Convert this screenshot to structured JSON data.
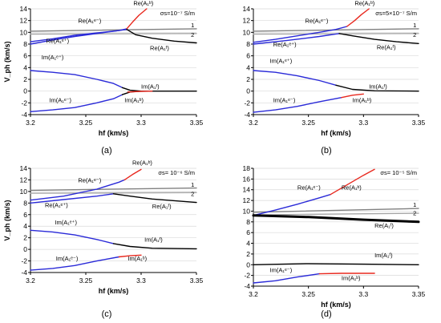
{
  "chart_data": [
    {
      "type": "line",
      "caption": "(a)",
      "xlabel": "hf (km/s)",
      "ylabel": "V_ph (km/s)",
      "xlim": [
        3.2,
        3.35
      ],
      "ylim": [
        -4,
        14
      ],
      "xticks": [
        3.2,
        3.25,
        3.3,
        3.35
      ],
      "xtick_labels": [
        "3.2",
        "3.25",
        "3.3",
        "3.35"
      ],
      "yticks": [
        -4,
        -2,
        0,
        2,
        4,
        6,
        8,
        10,
        12,
        14
      ],
      "sigma_label": "σs=10⁻⁷ S/m",
      "series": [
        {
          "color": "#808080",
          "x": [
            3.2,
            3.35
          ],
          "y": [
            10.2,
            10.6
          ]
        },
        {
          "color": "#a6a6a6",
          "x": [
            3.2,
            3.35
          ],
          "y": [
            9.7,
            9.8
          ]
        },
        {
          "color": "#2a2ad8",
          "x": [
            3.2,
            3.22,
            3.24,
            3.26,
            3.28,
            3.287
          ],
          "y": [
            8.0,
            8.7,
            9.3,
            9.8,
            10.3,
            10.6
          ]
        },
        {
          "color": "#2a2ad8",
          "x": [
            3.2,
            3.22,
            3.24,
            3.26,
            3.28,
            3.287
          ],
          "y": [
            8.4,
            8.9,
            9.5,
            9.9,
            10.3,
            10.5
          ]
        },
        {
          "color": "#e8281e",
          "x": [
            3.287,
            3.292,
            3.298,
            3.305
          ],
          "y": [
            10.6,
            11.7,
            12.9,
            14.0
          ]
        },
        {
          "color": "#000000",
          "x": [
            3.287,
            3.295,
            3.31,
            3.33,
            3.35
          ],
          "y": [
            10.5,
            9.6,
            9.0,
            8.5,
            8.2
          ]
        },
        {
          "color": "#2a2ad8",
          "x": [
            3.2,
            3.22,
            3.24,
            3.26,
            3.275,
            3.283
          ],
          "y": [
            3.5,
            3.2,
            2.8,
            2.0,
            1.3,
            0.6
          ]
        },
        {
          "color": "#2a2ad8",
          "x": [
            3.2,
            3.22,
            3.24,
            3.26,
            3.275,
            3.283
          ],
          "y": [
            -3.5,
            -3.2,
            -2.8,
            -2.0,
            -1.3,
            -0.6
          ]
        },
        {
          "color": "#000000",
          "x": [
            3.283,
            3.29,
            3.3,
            3.35
          ],
          "y": [
            0.6,
            0.15,
            0.0,
            0.0
          ]
        },
        {
          "color": "#000000",
          "x": [
            3.283,
            3.29,
            3.3
          ],
          "y": [
            -0.6,
            -0.15,
            0.0
          ]
        },
        {
          "color": "#e8281e",
          "x": [
            3.288,
            3.3,
            3.31
          ],
          "y": [
            -0.15,
            -0.05,
            0.0
          ]
        }
      ],
      "annotations": [
        {
          "text": "1",
          "x": 3.348,
          "y": 10.85
        },
        {
          "text": "2",
          "x": 3.348,
          "y": 9.2
        },
        {
          "text": "Re(A₁ᵇ)",
          "x": 3.293,
          "y": 14.6
        },
        {
          "text": "Re(A₁ᵉ⁻)",
          "x": 3.243,
          "y": 11.6
        },
        {
          "text": "Re(A₁ᵉ⁺)",
          "x": 3.214,
          "y": 8.2
        },
        {
          "text": "Re(A₁ᶠ)",
          "x": 3.308,
          "y": 7.0
        },
        {
          "text": "Im(A₁ᵉ⁺)",
          "x": 3.21,
          "y": 5.4
        },
        {
          "text": "Im(A₁ᶠ)",
          "x": 3.3,
          "y": 0.4
        },
        {
          "text": "Im(A₁ᵇ)",
          "x": 3.285,
          "y": -1.9
        },
        {
          "text": "Im(A₁ᵉ⁻)",
          "x": 3.217,
          "y": -1.9
        }
      ]
    },
    {
      "type": "line",
      "caption": "(b)",
      "xlabel": "hf (km/s)",
      "ylabel": "",
      "xlim": [
        3.2,
        3.35
      ],
      "ylim": [
        -4,
        14
      ],
      "xticks": [
        3.2,
        3.25,
        3.3,
        3.35
      ],
      "xtick_labels": [
        "3.2",
        "3.25",
        "3.3",
        "3.35"
      ],
      "yticks": [
        -4,
        -2,
        0,
        2,
        4,
        6,
        8,
        10,
        12,
        14
      ],
      "sigma_label": "σs=5×10⁻⁷ S/m",
      "series": [
        {
          "color": "#808080",
          "x": [
            3.2,
            3.35
          ],
          "y": [
            10.2,
            10.6
          ]
        },
        {
          "color": "#a6a6a6",
          "x": [
            3.2,
            3.35
          ],
          "y": [
            9.7,
            9.8
          ]
        },
        {
          "color": "#2a2ad8",
          "x": [
            3.2,
            3.22,
            3.24,
            3.26,
            3.275,
            3.285
          ],
          "y": [
            8.3,
            8.8,
            9.4,
            10.0,
            10.5,
            11.0
          ]
        },
        {
          "color": "#e8281e",
          "x": [
            3.285,
            3.292,
            3.298,
            3.305
          ],
          "y": [
            11.0,
            12.0,
            13.0,
            14.0
          ]
        },
        {
          "color": "#2a2ad8",
          "x": [
            3.2,
            3.23,
            3.26,
            3.278
          ],
          "y": [
            8.0,
            8.6,
            9.3,
            9.8
          ]
        },
        {
          "color": "#000000",
          "x": [
            3.278,
            3.29,
            3.31,
            3.33,
            3.35
          ],
          "y": [
            9.8,
            9.4,
            8.8,
            8.4,
            8.1
          ]
        },
        {
          "color": "#2a2ad8",
          "x": [
            3.2,
            3.22,
            3.24,
            3.26,
            3.275
          ],
          "y": [
            3.5,
            3.2,
            2.6,
            1.8,
            1.0
          ]
        },
        {
          "color": "#000000",
          "x": [
            3.275,
            3.29,
            3.31,
            3.35
          ],
          "y": [
            1.0,
            0.3,
            0.05,
            0.0
          ]
        },
        {
          "color": "#2a2ad8",
          "x": [
            3.2,
            3.22,
            3.24,
            3.26,
            3.28
          ],
          "y": [
            -3.6,
            -3.2,
            -2.6,
            -1.8,
            -1.1
          ]
        },
        {
          "color": "#e8281e",
          "x": [
            3.28,
            3.29,
            3.3
          ],
          "y": [
            -1.1,
            -0.7,
            -0.5
          ]
        }
      ],
      "annotations": [
        {
          "text": "1",
          "x": 3.348,
          "y": 10.85
        },
        {
          "text": "2",
          "x": 3.348,
          "y": 9.2
        },
        {
          "text": "Re(A₁ᵇ)",
          "x": 3.292,
          "y": 14.6
        },
        {
          "text": "Re(A₁ᵉ⁻)",
          "x": 3.247,
          "y": 11.6
        },
        {
          "text": "Re(A₁ᵉ⁺)",
          "x": 3.218,
          "y": 7.6
        },
        {
          "text": "Re(A₁ᶠ)",
          "x": 3.312,
          "y": 7.1
        },
        {
          "text": "Im(A₁ᵉ⁺)",
          "x": 3.215,
          "y": 4.8
        },
        {
          "text": "Im(A₁ᶠ)",
          "x": 3.305,
          "y": 0.4
        },
        {
          "text": "Im(A₁ᵇ)",
          "x": 3.29,
          "y": -1.9
        },
        {
          "text": "Im(A₁ᵉ⁻)",
          "x": 3.218,
          "y": -1.9
        }
      ]
    },
    {
      "type": "line",
      "caption": "(c)",
      "xlabel": "hf (km/s)",
      "ylabel": "V_ph (km/s)",
      "xlim": [
        3.2,
        3.35
      ],
      "ylim": [
        -4,
        14
      ],
      "xticks": [
        3.2,
        3.25,
        3.3,
        3.35
      ],
      "xtick_labels": [
        "3.2",
        "3.25",
        "3.3",
        "3.35"
      ],
      "yticks": [
        -4,
        -2,
        0,
        2,
        4,
        6,
        8,
        10,
        12,
        14
      ],
      "sigma_label": "σs= 10⁻⁶ S/m",
      "series": [
        {
          "color": "#808080",
          "x": [
            3.2,
            3.35
          ],
          "y": [
            10.2,
            10.6
          ]
        },
        {
          "color": "#a6a6a6",
          "x": [
            3.2,
            3.35
          ],
          "y": [
            9.7,
            9.8
          ]
        },
        {
          "color": "#2a2ad8",
          "x": [
            3.2,
            3.23,
            3.26,
            3.28,
            3.285
          ],
          "y": [
            8.5,
            9.2,
            10.4,
            11.6,
            12.0
          ]
        },
        {
          "color": "#e8281e",
          "x": [
            3.285,
            3.292,
            3.3
          ],
          "y": [
            12.0,
            12.9,
            13.8
          ]
        },
        {
          "color": "#2a2ad8",
          "x": [
            3.2,
            3.23,
            3.26,
            3.275
          ],
          "y": [
            8.0,
            8.6,
            9.2,
            9.6
          ]
        },
        {
          "color": "#000000",
          "x": [
            3.275,
            3.29,
            3.31,
            3.33,
            3.35
          ],
          "y": [
            9.6,
            9.2,
            8.7,
            8.4,
            8.1
          ]
        },
        {
          "color": "#2a2ad8",
          "x": [
            3.2,
            3.22,
            3.24,
            3.26,
            3.275
          ],
          "y": [
            3.3,
            3.0,
            2.5,
            1.7,
            1.0
          ]
        },
        {
          "color": "#000000",
          "x": [
            3.275,
            3.29,
            3.31,
            3.35
          ],
          "y": [
            1.0,
            0.5,
            0.2,
            0.1
          ]
        },
        {
          "color": "#2a2ad8",
          "x": [
            3.2,
            3.22,
            3.24,
            3.26,
            3.28
          ],
          "y": [
            -3.6,
            -3.3,
            -2.8,
            -2.0,
            -1.3
          ]
        },
        {
          "color": "#e8281e",
          "x": [
            3.28,
            3.29,
            3.3
          ],
          "y": [
            -1.3,
            -1.1,
            -1.0
          ]
        }
      ],
      "annotations": [
        {
          "text": "1",
          "x": 3.348,
          "y": 10.85
        },
        {
          "text": "2",
          "x": 3.348,
          "y": 9.2
        },
        {
          "text": "Re(A₁ᵇ)",
          "x": 3.292,
          "y": 14.6
        },
        {
          "text": "Re(A₁ᵉ⁻)",
          "x": 3.243,
          "y": 11.6
        },
        {
          "text": "Re(A₁ᵉ⁺)",
          "x": 3.213,
          "y": 7.3
        },
        {
          "text": "Re(A₁ᶠ)",
          "x": 3.31,
          "y": 7.1
        },
        {
          "text": "Im(A₁ᵉ⁺)",
          "x": 3.222,
          "y": 4.3
        },
        {
          "text": "Im(A₁ᶠ)",
          "x": 3.303,
          "y": 1.3
        },
        {
          "text": "Im(A₁ᵇ)",
          "x": 3.288,
          "y": -1.9
        },
        {
          "text": "Im(A₁ᵉ⁻)",
          "x": 3.223,
          "y": -1.9
        }
      ]
    },
    {
      "type": "line",
      "caption": "(d)",
      "xlabel": "hf (km/s)",
      "ylabel": "",
      "xlim": [
        3.2,
        3.35
      ],
      "ylim": [
        -4,
        18
      ],
      "xticks": [
        3.2,
        3.25,
        3.3,
        3.35
      ],
      "xtick_labels": [
        "3.2",
        "3.25",
        "3.3",
        "3.35"
      ],
      "yticks": [
        -4,
        -2,
        0,
        2,
        4,
        6,
        8,
        10,
        12,
        14,
        16,
        18
      ],
      "sigma_label": "σs= 10⁻⁵ S/m",
      "series": [
        {
          "color": "#808080",
          "x": [
            3.2,
            3.35
          ],
          "y": [
            9.8,
            10.5
          ]
        },
        {
          "color": "#a6a6a6",
          "x": [
            3.2,
            3.35
          ],
          "y": [
            9.3,
            9.6
          ]
        },
        {
          "color": "#2a2ad8",
          "x": [
            3.2,
            3.22,
            3.24,
            3.26,
            3.27
          ],
          "y": [
            9.2,
            10.2,
            11.3,
            12.5,
            13.1
          ]
        },
        {
          "color": "#e8281e",
          "x": [
            3.27,
            3.285,
            3.3,
            3.31
          ],
          "y": [
            13.1,
            14.9,
            16.7,
            17.8
          ]
        },
        {
          "color": "#000000",
          "width": 3,
          "x": [
            3.2,
            3.25,
            3.3,
            3.35
          ],
          "y": [
            9.2,
            8.9,
            8.4,
            8.0
          ]
        },
        {
          "color": "#000000",
          "x": [
            3.2,
            3.25,
            3.3,
            3.35
          ],
          "y": [
            0.0,
            0.2,
            0.1,
            0.0
          ]
        },
        {
          "color": "#2a2ad8",
          "x": [
            3.2,
            3.22,
            3.24,
            3.26
          ],
          "y": [
            -3.4,
            -3.0,
            -2.3,
            -1.7
          ]
        },
        {
          "color": "#e8281e",
          "x": [
            3.26,
            3.28,
            3.3,
            3.31
          ],
          "y": [
            -1.7,
            -1.6,
            -1.6,
            -1.6
          ]
        }
      ],
      "annotations": [
        {
          "text": "1",
          "x": 3.348,
          "y": 10.85
        },
        {
          "text": "2",
          "x": 3.348,
          "y": 9.25
        },
        {
          "text": "Re(A₁ᵇ)",
          "x": 3.28,
          "y": 14.0
        },
        {
          "text": "Re(A₁ᵉ⁻)",
          "x": 3.24,
          "y": 14.0
        },
        {
          "text": "Re(A₁ᶠ)",
          "x": 3.31,
          "y": 6.9
        },
        {
          "text": "Im(A₁ᶠ)",
          "x": 3.31,
          "y": 1.4
        },
        {
          "text": "Im(A₁ᵉ⁻)",
          "x": 3.215,
          "y": -1.4
        },
        {
          "text": "Im(A₁ᵇ)",
          "x": 3.28,
          "y": -2.9
        }
      ]
    }
  ]
}
